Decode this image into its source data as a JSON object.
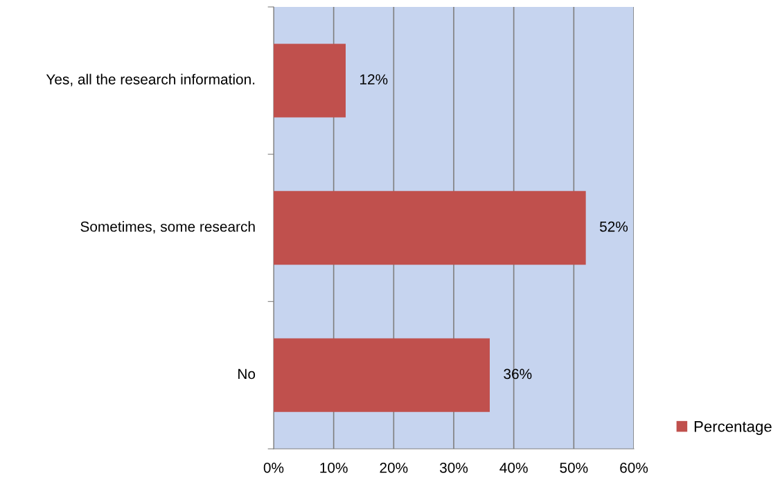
{
  "chart_data": {
    "type": "bar",
    "orientation": "horizontal",
    "categories": [
      "Yes, all the research information.",
      "Sometimes, some research",
      "No"
    ],
    "series": [
      {
        "name": "Percentage",
        "color": "#c0504d",
        "values": [
          12,
          52,
          36
        ],
        "value_labels": [
          "12%",
          "52%",
          "36%"
        ]
      }
    ],
    "xlim": [
      0,
      60
    ],
    "xticks": [
      {
        "value": 0,
        "label": "0%"
      },
      {
        "value": 10,
        "label": "10%"
      },
      {
        "value": 20,
        "label": "20%"
      },
      {
        "value": 30,
        "label": "30%"
      },
      {
        "value": 40,
        "label": "40%"
      },
      {
        "value": 50,
        "label": "50%"
      },
      {
        "value": 60,
        "label": "60%"
      }
    ],
    "grid": "x",
    "legend": "right"
  }
}
